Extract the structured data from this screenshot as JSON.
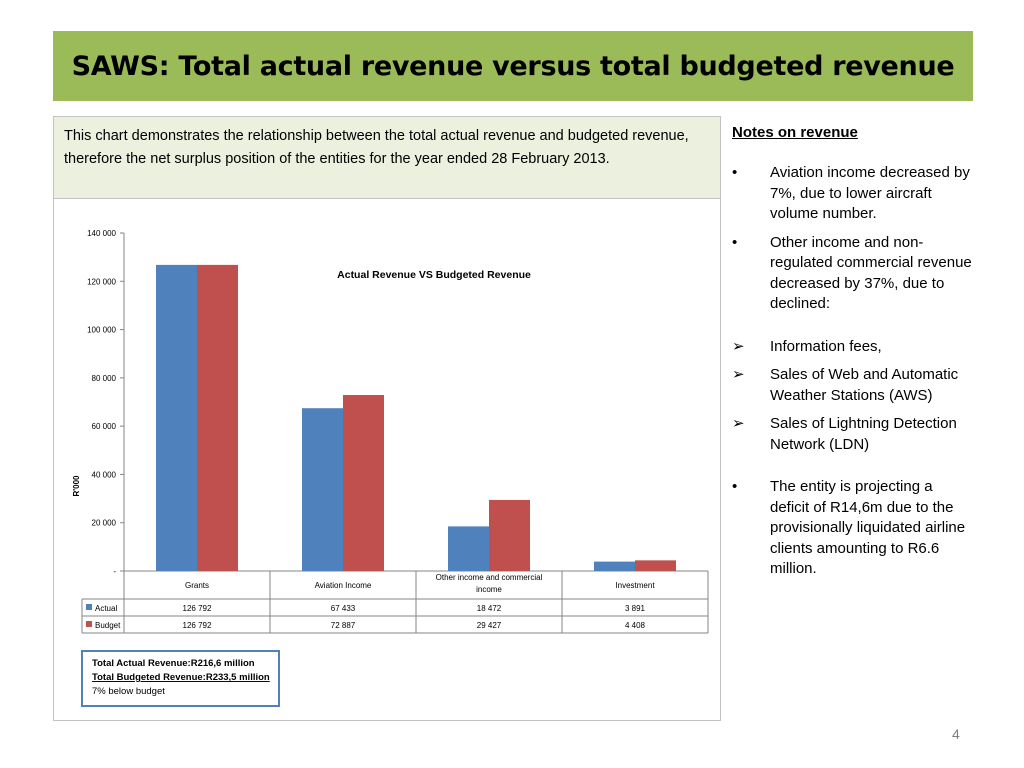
{
  "slide": {
    "title": "SAWS: Total actual revenue versus total budgeted revenue",
    "intro": "This chart demonstrates the relationship between the total actual revenue and budgeted revenue, therefore the net surplus position of the entities for the year ended 28 February 2013.",
    "page_number": "4"
  },
  "notes": {
    "heading": "Notes on revenue",
    "items": [
      {
        "marker": "•",
        "text": "Aviation income decreased by 7%, due to lower aircraft volume number."
      },
      {
        "marker": "•",
        "text": "Other income and non-regulated commercial revenue decreased by 37%, due to declined:"
      },
      {
        "marker": "➢",
        "text": "Information fees,"
      },
      {
        "marker": "➢",
        "text": "Sales of Web and Automatic Weather Stations (AWS)"
      },
      {
        "marker": "➢",
        "text": "Sales of Lightning Detection Network (LDN)"
      },
      {
        "marker": "•",
        "text": "The entity is projecting a deficit of R14,6m due to the provisionally liquidated airline clients amounting to R6.6 million."
      }
    ]
  },
  "chart_data": {
    "type": "bar",
    "title": "Actual Revenue VS Budgeted Revenue",
    "xlabel": "",
    "ylabel": "R'000",
    "ylim": [
      0,
      140000
    ],
    "yticks": [
      0,
      20000,
      40000,
      60000,
      80000,
      100000,
      120000,
      140000
    ],
    "ytick_labels": [
      "-",
      "20 000",
      "40 000",
      "60 000",
      "80 000",
      "100 000",
      "120 000",
      "140 000"
    ],
    "categories": [
      "Grants",
      "Aviation Income",
      "Other income and commercial income",
      "Investment"
    ],
    "series": [
      {
        "name": "Actual",
        "color": "#4f81bd",
        "values": [
          126792,
          67433,
          18472,
          3891
        ],
        "labels": [
          "126 792",
          "67 433",
          "18 472",
          "3 891"
        ]
      },
      {
        "name": "Budget",
        "color": "#c0504d",
        "values": [
          126792,
          72887,
          29427,
          4408
        ],
        "labels": [
          "126 792",
          "72 887",
          "29 427",
          "4 408"
        ]
      }
    ],
    "legend": "data-table",
    "grid": false
  },
  "summary_box": {
    "line1": "Total Actual Revenue:R216,6 million",
    "line2": "Total Budgeted Revenue:R233,5 million",
    "line3": "7% below budget"
  }
}
